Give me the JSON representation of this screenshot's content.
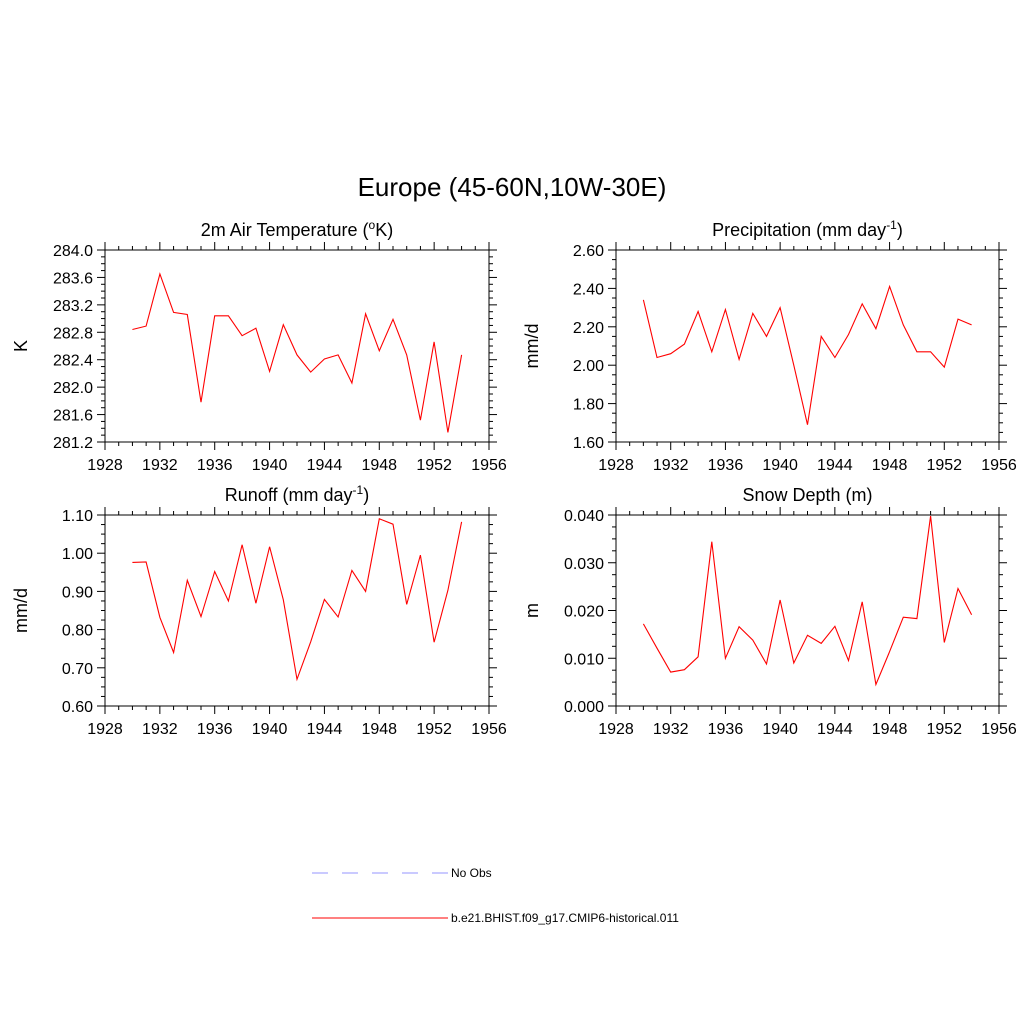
{
  "figure": {
    "title": "Europe (45-60N,10W-30E)"
  },
  "chart_data": [
    {
      "type": "line",
      "title": "2m Air Temperature (oK)",
      "title_parts": {
        "pre": "2m Air Temperature (",
        "sup": "o",
        "post": "K)"
      },
      "ylabel": "K",
      "xlim": [
        1928,
        1956
      ],
      "ylim": [
        281.2,
        284.0
      ],
      "xticks": [
        1928,
        1932,
        1936,
        1940,
        1944,
        1948,
        1952,
        1956
      ],
      "yticks": [
        "281.2",
        "281.6",
        "282.0",
        "282.4",
        "282.8",
        "283.2",
        "283.6",
        "284.0"
      ],
      "x": [
        1930,
        1931,
        1932,
        1933,
        1934,
        1935,
        1936,
        1937,
        1938,
        1939,
        1940,
        1941,
        1942,
        1943,
        1944,
        1945,
        1946,
        1947,
        1948,
        1949,
        1950,
        1951,
        1952,
        1953,
        1954
      ],
      "series": [
        {
          "name": "b.e21.BHIST.f09_g17.CMIP6-historical.011",
          "color": "#ff0000",
          "values": [
            282.84,
            282.89,
            283.65,
            283.09,
            283.06,
            281.78,
            283.04,
            283.04,
            282.75,
            282.86,
            282.23,
            282.91,
            282.47,
            282.22,
            282.41,
            282.47,
            282.06,
            283.07,
            282.53,
            282.99,
            282.47,
            281.52,
            282.66,
            281.34,
            282.47
          ]
        }
      ]
    },
    {
      "type": "line",
      "title": "Precipitation (mm day-1)",
      "title_parts": {
        "pre": "Precipitation (mm day",
        "sup": "-1",
        "post": ")"
      },
      "ylabel": "mm/d",
      "xlim": [
        1928,
        1956
      ],
      "ylim": [
        1.6,
        2.6
      ],
      "xticks": [
        1928,
        1932,
        1936,
        1940,
        1944,
        1948,
        1952,
        1956
      ],
      "yticks": [
        "1.60",
        "1.80",
        "2.00",
        "2.20",
        "2.40",
        "2.60"
      ],
      "x": [
        1930,
        1931,
        1932,
        1933,
        1934,
        1935,
        1936,
        1937,
        1938,
        1939,
        1940,
        1941,
        1942,
        1943,
        1944,
        1945,
        1946,
        1947,
        1948,
        1949,
        1950,
        1951,
        1952,
        1953,
        1954
      ],
      "series": [
        {
          "name": "b.e21.BHIST.f09_g17.CMIP6-historical.011",
          "color": "#ff0000",
          "values": [
            2.34,
            2.04,
            2.06,
            2.11,
            2.28,
            2.07,
            2.29,
            2.03,
            2.27,
            2.15,
            2.3,
            2.0,
            1.69,
            2.15,
            2.04,
            2.16,
            2.32,
            2.19,
            2.41,
            2.21,
            2.07,
            2.07,
            1.99,
            2.24,
            2.21
          ]
        }
      ]
    },
    {
      "type": "line",
      "title": "Runoff (mm day-1)",
      "title_parts": {
        "pre": "Runoff (mm day",
        "sup": "-1",
        "post": ")"
      },
      "ylabel": "mm/d",
      "xlim": [
        1928,
        1956
      ],
      "ylim": [
        0.6,
        1.1
      ],
      "xticks": [
        1928,
        1932,
        1936,
        1940,
        1944,
        1948,
        1952,
        1956
      ],
      "yticks": [
        "0.60",
        "0.70",
        "0.80",
        "0.90",
        "1.00",
        "1.10"
      ],
      "x": [
        1930,
        1931,
        1932,
        1933,
        1934,
        1935,
        1936,
        1937,
        1938,
        1939,
        1940,
        1941,
        1942,
        1943,
        1944,
        1945,
        1946,
        1947,
        1948,
        1949,
        1950,
        1951,
        1952,
        1953,
        1954
      ],
      "series": [
        {
          "name": "b.e21.BHIST.f09_g17.CMIP6-historical.011",
          "color": "#ff0000",
          "values": [
            0.976,
            0.977,
            0.832,
            0.74,
            0.929,
            0.834,
            0.952,
            0.875,
            1.022,
            0.869,
            1.017,
            0.878,
            0.67,
            0.768,
            0.879,
            0.833,
            0.955,
            0.9,
            1.09,
            1.076,
            0.866,
            0.995,
            0.767,
            0.903,
            1.082
          ]
        }
      ]
    },
    {
      "type": "line",
      "title": "Snow Depth (m)",
      "title_parts": {
        "pre": "Snow Depth (m)",
        "sup": "",
        "post": ""
      },
      "ylabel": "m",
      "xlim": [
        1928,
        1956
      ],
      "ylim": [
        0.0,
        0.04
      ],
      "xticks": [
        1928,
        1932,
        1936,
        1940,
        1944,
        1948,
        1952,
        1956
      ],
      "yticks": [
        "0.000",
        "0.010",
        "0.020",
        "0.030",
        "0.040"
      ],
      "x": [
        1930,
        1931,
        1932,
        1933,
        1934,
        1935,
        1936,
        1937,
        1938,
        1939,
        1940,
        1941,
        1942,
        1943,
        1944,
        1945,
        1946,
        1947,
        1948,
        1949,
        1950,
        1951,
        1952,
        1953,
        1954
      ],
      "series": [
        {
          "name": "b.e21.BHIST.f09_g17.CMIP6-historical.011",
          "color": "#ff0000",
          "values": [
            0.0172,
            0.0121,
            0.0071,
            0.0076,
            0.0103,
            0.0344,
            0.01,
            0.0166,
            0.0138,
            0.0088,
            0.0222,
            0.009,
            0.0148,
            0.0131,
            0.0167,
            0.0095,
            0.0218,
            0.0045,
            0.0114,
            0.0186,
            0.0183,
            0.0398,
            0.0133,
            0.0246,
            0.0191
          ]
        }
      ]
    }
  ],
  "legend": {
    "position": "bottom-center",
    "items": [
      {
        "label": "No Obs",
        "color": "#aaaaff",
        "style": "dashed"
      },
      {
        "label": "b.e21.BHIST.f09_g17.CMIP6-historical.011",
        "color": "#ff0000",
        "style": "solid"
      }
    ]
  }
}
